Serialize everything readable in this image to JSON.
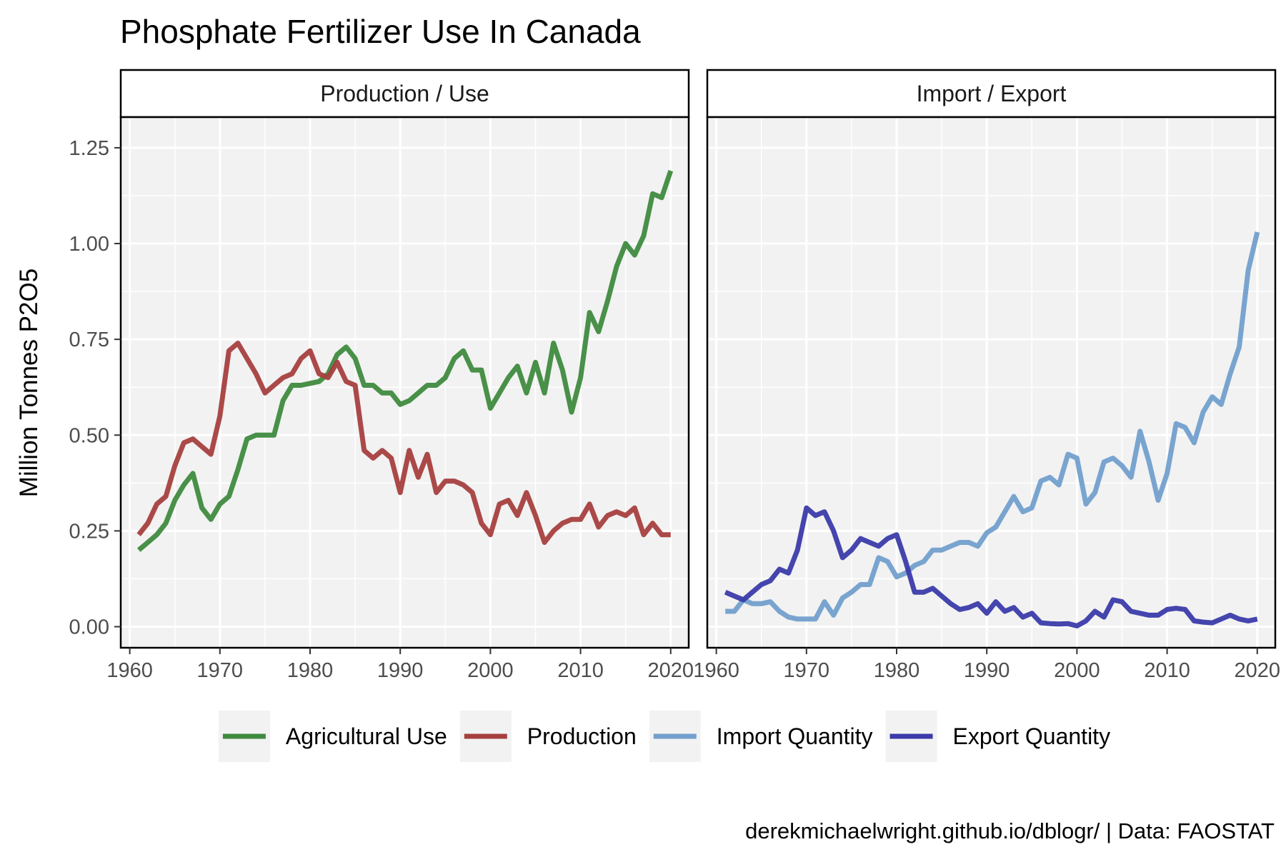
{
  "chart_data": {
    "type": "line",
    "title": "Phosphate Fertilizer Use In Canada",
    "ylabel": "Million Tonnes P2O5",
    "xlabel": "",
    "caption": "derekmichaelwright.github.io/dblogr/ | Data: FAOSTAT",
    "xlim": [
      1959,
      2022
    ],
    "ylim": [
      -0.055,
      1.33
    ],
    "x_ticks": [
      1960,
      1970,
      1980,
      1990,
      2000,
      2010,
      2020
    ],
    "x_tick_labels": [
      "1960",
      "1970",
      "1980",
      "1990",
      "2000",
      "2010",
      "2020"
    ],
    "y_ticks": [
      0,
      0.25,
      0.5,
      0.75,
      1.0,
      1.25
    ],
    "y_tick_labels": [
      "0.00",
      "0.25",
      "0.50",
      "0.75",
      "1.00",
      "1.25"
    ],
    "grid": true,
    "legend_position": "bottom",
    "colors": {
      "Agricultural Use": "#3f8a3f",
      "Production": "#a63f3f",
      "Import Quantity": "#729fcc",
      "Export Quantity": "#3b3baa"
    },
    "legend": [
      {
        "name": "Agricultural Use",
        "color": "#3f8a3f"
      },
      {
        "name": "Production",
        "color": "#a63f3f"
      },
      {
        "name": "Import Quantity",
        "color": "#729fcc"
      },
      {
        "name": "Export Quantity",
        "color": "#3b3baa"
      }
    ],
    "panels": [
      {
        "strip": "Production / Use",
        "series": [
          {
            "name": "Agricultural Use",
            "color": "#3f8a3f",
            "x": [
              1961,
              1962,
              1963,
              1964,
              1965,
              1966,
              1967,
              1968,
              1969,
              1970,
              1971,
              1972,
              1973,
              1974,
              1975,
              1976,
              1977,
              1978,
              1979,
              1980,
              1981,
              1982,
              1983,
              1984,
              1985,
              1986,
              1987,
              1988,
              1989,
              1990,
              1991,
              1992,
              1993,
              1994,
              1995,
              1996,
              1997,
              1998,
              1999,
              2000,
              2001,
              2002,
              2003,
              2004,
              2005,
              2006,
              2007,
              2008,
              2009,
              2010,
              2011,
              2012,
              2013,
              2014,
              2015,
              2016,
              2017,
              2018,
              2019,
              2020
            ],
            "values": [
              0.2,
              0.22,
              0.24,
              0.27,
              0.33,
              0.37,
              0.4,
              0.31,
              0.28,
              0.32,
              0.34,
              0.41,
              0.49,
              0.5,
              0.5,
              0.5,
              0.59,
              0.63,
              0.63,
              0.635,
              0.64,
              0.66,
              0.71,
              0.73,
              0.7,
              0.63,
              0.63,
              0.61,
              0.61,
              0.58,
              0.59,
              0.61,
              0.63,
              0.63,
              0.65,
              0.7,
              0.72,
              0.67,
              0.67,
              0.57,
              0.61,
              0.65,
              0.68,
              0.61,
              0.69,
              0.61,
              0.74,
              0.67,
              0.56,
              0.65,
              0.82,
              0.77,
              0.85,
              0.94,
              1.0,
              0.97,
              1.02,
              1.13,
              1.12,
              1.19
            ]
          },
          {
            "name": "Production",
            "color": "#a63f3f",
            "x": [
              1961,
              1962,
              1963,
              1964,
              1965,
              1966,
              1967,
              1968,
              1969,
              1970,
              1971,
              1972,
              1973,
              1974,
              1975,
              1976,
              1977,
              1978,
              1979,
              1980,
              1981,
              1982,
              1983,
              1984,
              1985,
              1986,
              1987,
              1988,
              1989,
              1990,
              1991,
              1992,
              1993,
              1994,
              1995,
              1996,
              1997,
              1998,
              1999,
              2000,
              2001,
              2002,
              2003,
              2004,
              2005,
              2006,
              2007,
              2008,
              2009,
              2010,
              2011,
              2012,
              2013,
              2014,
              2015,
              2016,
              2017,
              2018,
              2019,
              2020
            ],
            "values": [
              0.24,
              0.27,
              0.32,
              0.34,
              0.42,
              0.48,
              0.49,
              0.47,
              0.45,
              0.55,
              0.72,
              0.74,
              0.7,
              0.66,
              0.61,
              0.63,
              0.65,
              0.66,
              0.7,
              0.72,
              0.66,
              0.65,
              0.69,
              0.64,
              0.63,
              0.46,
              0.44,
              0.46,
              0.44,
              0.35,
              0.46,
              0.39,
              0.45,
              0.35,
              0.38,
              0.38,
              0.37,
              0.35,
              0.27,
              0.24,
              0.32,
              0.33,
              0.29,
              0.35,
              0.29,
              0.22,
              0.25,
              0.27,
              0.28,
              0.28,
              0.32,
              0.26,
              0.29,
              0.3,
              0.29,
              0.31,
              0.24,
              0.27,
              0.24,
              0.24
            ]
          }
        ]
      },
      {
        "strip": "Import / Export",
        "series": [
          {
            "name": "Import Quantity",
            "color": "#729fcc",
            "x": [
              1961,
              1962,
              1963,
              1964,
              1965,
              1966,
              1967,
              1968,
              1969,
              1970,
              1971,
              1972,
              1973,
              1974,
              1975,
              1976,
              1977,
              1978,
              1979,
              1980,
              1981,
              1982,
              1983,
              1984,
              1985,
              1986,
              1987,
              1988,
              1989,
              1990,
              1991,
              1992,
              1993,
              1994,
              1995,
              1996,
              1997,
              1998,
              1999,
              2000,
              2001,
              2002,
              2003,
              2004,
              2005,
              2006,
              2007,
              2008,
              2009,
              2010,
              2011,
              2012,
              2013,
              2014,
              2015,
              2016,
              2017,
              2018,
              2019,
              2020
            ],
            "values": [
              0.04,
              0.04,
              0.07,
              0.06,
              0.06,
              0.065,
              0.04,
              0.025,
              0.02,
              0.02,
              0.02,
              0.065,
              0.03,
              0.075,
              0.09,
              0.11,
              0.11,
              0.18,
              0.17,
              0.13,
              0.14,
              0.16,
              0.17,
              0.2,
              0.2,
              0.21,
              0.22,
              0.22,
              0.21,
              0.245,
              0.26,
              0.3,
              0.34,
              0.3,
              0.31,
              0.38,
              0.39,
              0.37,
              0.45,
              0.44,
              0.32,
              0.35,
              0.43,
              0.44,
              0.42,
              0.39,
              0.51,
              0.43,
              0.33,
              0.4,
              0.53,
              0.52,
              0.48,
              0.56,
              0.6,
              0.58,
              0.66,
              0.73,
              0.93,
              1.03
            ]
          },
          {
            "name": "Export Quantity",
            "color": "#3b3baa",
            "x": [
              1961,
              1962,
              1963,
              1964,
              1965,
              1966,
              1967,
              1968,
              1969,
              1970,
              1971,
              1972,
              1973,
              1974,
              1975,
              1976,
              1977,
              1978,
              1979,
              1980,
              1981,
              1982,
              1983,
              1984,
              1985,
              1986,
              1987,
              1988,
              1989,
              1990,
              1991,
              1992,
              1993,
              1994,
              1995,
              1996,
              1997,
              1998,
              1999,
              2000,
              2001,
              2002,
              2003,
              2004,
              2005,
              2006,
              2007,
              2008,
              2009,
              2010,
              2011,
              2012,
              2013,
              2014,
              2015,
              2016,
              2017,
              2018,
              2019,
              2020
            ],
            "values": [
              0.09,
              0.08,
              0.07,
              0.09,
              0.11,
              0.12,
              0.15,
              0.14,
              0.2,
              0.31,
              0.29,
              0.3,
              0.25,
              0.18,
              0.2,
              0.23,
              0.22,
              0.21,
              0.23,
              0.24,
              0.17,
              0.09,
              0.09,
              0.1,
              0.08,
              0.06,
              0.045,
              0.05,
              0.06,
              0.035,
              0.065,
              0.04,
              0.05,
              0.025,
              0.035,
              0.01,
              0.008,
              0.007,
              0.008,
              0.002,
              0.015,
              0.04,
              0.025,
              0.07,
              0.065,
              0.04,
              0.035,
              0.03,
              0.03,
              0.045,
              0.048,
              0.045,
              0.015,
              0.012,
              0.01,
              0.02,
              0.03,
              0.02,
              0.015,
              0.02
            ]
          }
        ]
      }
    ]
  }
}
